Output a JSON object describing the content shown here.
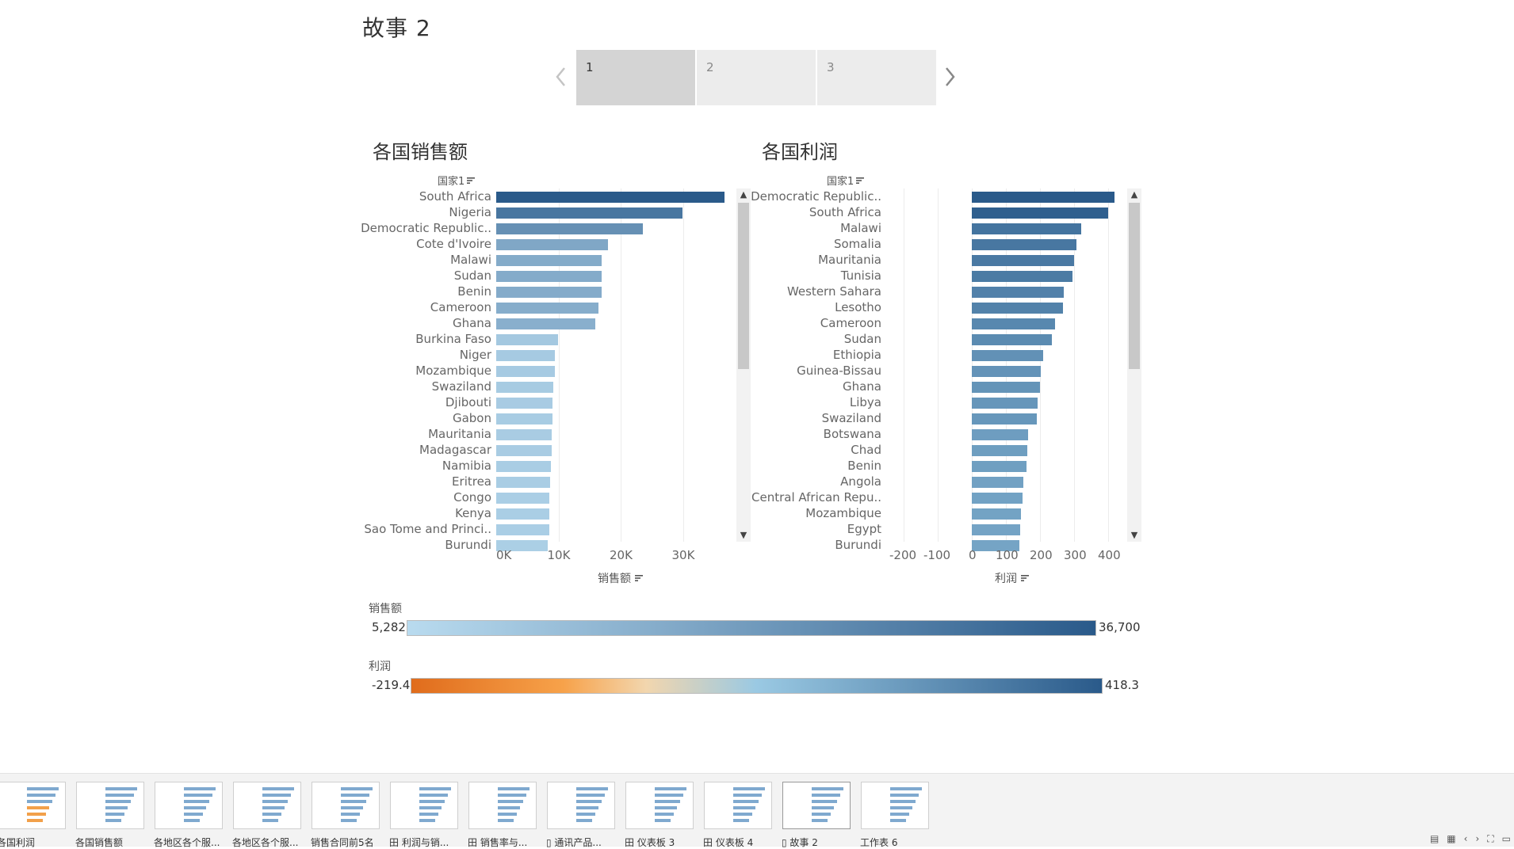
{
  "story": {
    "title": "故事 2",
    "points": [
      "1",
      "2",
      "3"
    ],
    "active_point": 0
  },
  "sales_chart": {
    "title": "各国销售额",
    "row_header": "国家1",
    "x_title": "销售额",
    "ticks": [
      "0K",
      "10K",
      "20K",
      "30K"
    ],
    "rows": [
      {
        "label": "South Africa",
        "value": 36700
      },
      {
        "label": "Nigeria",
        "value": 30000
      },
      {
        "label": "Democratic Republic..",
        "value": 23600
      },
      {
        "label": "Cote d'Ivoire",
        "value": 17900
      },
      {
        "label": "Malawi",
        "value": 17000
      },
      {
        "label": "Sudan",
        "value": 16900
      },
      {
        "label": "Benin",
        "value": 16900
      },
      {
        "label": "Cameroon",
        "value": 16400
      },
      {
        "label": "Ghana",
        "value": 15900
      },
      {
        "label": "Burkina Faso",
        "value": 9900
      },
      {
        "label": "Niger",
        "value": 9400
      },
      {
        "label": "Mozambique",
        "value": 9400
      },
      {
        "label": "Swaziland",
        "value": 9200
      },
      {
        "label": "Djibouti",
        "value": 9100
      },
      {
        "label": "Gabon",
        "value": 9000
      },
      {
        "label": "Mauritania",
        "value": 8900
      },
      {
        "label": "Madagascar",
        "value": 8900
      },
      {
        "label": "Namibia",
        "value": 8800
      },
      {
        "label": "Eritrea",
        "value": 8700
      },
      {
        "label": "Congo",
        "value": 8500
      },
      {
        "label": "Kenya",
        "value": 8500
      },
      {
        "label": "Sao Tome and Princi..",
        "value": 8500
      },
      {
        "label": "Burundi",
        "value": 8300
      }
    ]
  },
  "profit_chart": {
    "title": "各国利润",
    "row_header": "国家1",
    "x_title": "利润",
    "ticks": [
      "-200",
      "-100",
      "0",
      "100",
      "200",
      "300",
      "400"
    ],
    "rows": [
      {
        "label": "Democratic Republic..",
        "value": 418.3
      },
      {
        "label": "South Africa",
        "value": 400
      },
      {
        "label": "Malawi",
        "value": 320
      },
      {
        "label": "Somalia",
        "value": 308
      },
      {
        "label": "Mauritania",
        "value": 300
      },
      {
        "label": "Tunisia",
        "value": 295
      },
      {
        "label": "Western Sahara",
        "value": 270
      },
      {
        "label": "Lesotho",
        "value": 268
      },
      {
        "label": "Cameroon",
        "value": 245
      },
      {
        "label": "Sudan",
        "value": 235
      },
      {
        "label": "Ethiopia",
        "value": 210
      },
      {
        "label": "Guinea-Bissau",
        "value": 202
      },
      {
        "label": "Ghana",
        "value": 200
      },
      {
        "label": "Libya",
        "value": 193
      },
      {
        "label": "Swaziland",
        "value": 190
      },
      {
        "label": "Botswana",
        "value": 165
      },
      {
        "label": "Chad",
        "value": 163
      },
      {
        "label": "Benin",
        "value": 160
      },
      {
        "label": "Angola",
        "value": 150
      },
      {
        "label": "Central African Repu..",
        "value": 148
      },
      {
        "label": "Mozambique",
        "value": 145
      },
      {
        "label": "Egypt",
        "value": 142
      },
      {
        "label": "Burundi",
        "value": 140
      }
    ]
  },
  "legends": {
    "sales": {
      "title": "销售额",
      "min": "5,282",
      "max": "36,700"
    },
    "profit": {
      "title": "利润",
      "min": "-219.4",
      "max": "418.3"
    }
  },
  "colors": {
    "sales_light": "#b9dbef",
    "sales_dark": "#2a5a8a",
    "profit_neg": "#e06c1c",
    "profit_mid": "#f2d6ae",
    "profit_pos_light": "#9ac9e3",
    "profit_dark": "#2a5a8a"
  },
  "sheet_tabs": [
    {
      "label": "各国利润",
      "icon": ""
    },
    {
      "label": "各国销售额",
      "icon": ""
    },
    {
      "label": "各地区各个服...",
      "icon": ""
    },
    {
      "label": "各地区各个服...",
      "icon": ""
    },
    {
      "label": "销售合同前5名",
      "icon": ""
    },
    {
      "label": "利润与销...",
      "icon": "田"
    },
    {
      "label": "销售率与...",
      "icon": "田"
    },
    {
      "label": "通讯产品...",
      "icon": "▯"
    },
    {
      "label": "仪表板 3",
      "icon": "田"
    },
    {
      "label": "仪表板 4",
      "icon": "田"
    },
    {
      "label": "故事 2",
      "icon": "▯"
    },
    {
      "label": "工作表 6",
      "icon": ""
    }
  ],
  "active_tab": 10
}
